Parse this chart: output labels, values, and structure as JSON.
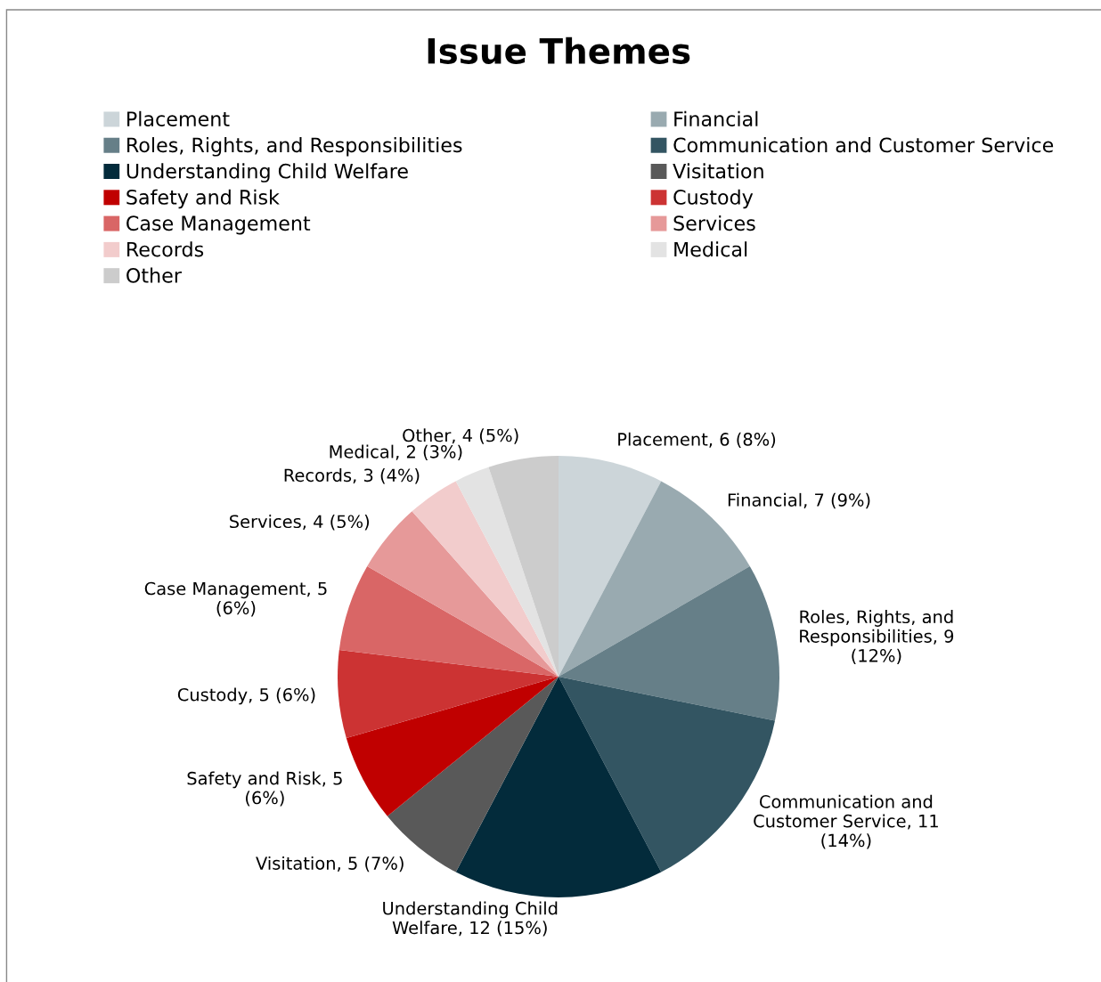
{
  "chart_data": {
    "type": "pie",
    "title": "Issue Themes",
    "categories": [
      "Placement",
      "Financial",
      "Roles, Rights, and Responsibilities",
      "Communication and Customer Service",
      "Understanding Child Welfare",
      "Visitation",
      "Safety and Risk",
      "Custody",
      "Case Management",
      "Services",
      "Records",
      "Medical",
      "Other"
    ],
    "values": [
      6,
      7,
      9,
      11,
      12,
      5,
      5,
      5,
      5,
      4,
      3,
      2,
      4
    ],
    "value_labels": [
      "Placement, 6 (8%)",
      "Financial, 7 (9%)",
      "Roles, Rights, and\nResponsibilities, 9\n(12%)",
      "Communication and\nCustomer Service, 11\n(14%)",
      "Understanding Child\nWelfare, 12 (15%)",
      "Visitation, 5 (7%)",
      "Safety and Risk, 5\n(6%)",
      "Custody, 5 (6%)",
      "Case Management, 5\n(6%)",
      "Services, 4 (5%)",
      "Records, 3 (4%)",
      "Medical, 2 (3%)",
      "Other, 4 (5%)"
    ],
    "colors": [
      "#ccd5d9",
      "#99aab0",
      "#667f88",
      "#335562",
      "#032b3b",
      "#595959",
      "#c00000",
      "#cc3333",
      "#d96666",
      "#e69999",
      "#f2cccc",
      "#e3e3e3",
      "#cccccc"
    ],
    "legend": "top"
  }
}
